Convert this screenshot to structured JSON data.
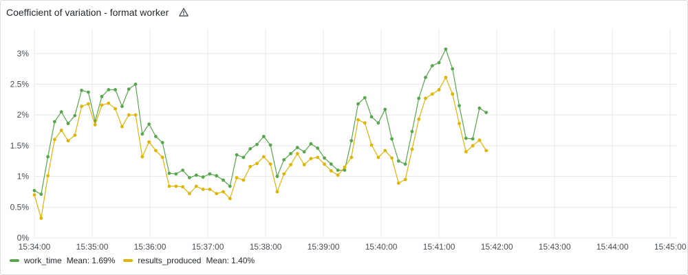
{
  "panel": {
    "title": "Coefficient of variation - format worker",
    "icon": "warning-triangle-icon"
  },
  "colors": {
    "work_time": "#56a64b",
    "results_produced": "#e0b400",
    "grid": "#e8e8ea"
  },
  "chart_data": {
    "type": "line",
    "title": "Coefficient of variation - format worker",
    "xlabel": "",
    "ylabel": "",
    "x_ticks": [
      "15:34:00",
      "15:35:00",
      "15:36:00",
      "15:37:00",
      "15:38:00",
      "15:39:00",
      "15:40:00",
      "15:41:00",
      "15:42:00",
      "15:43:00",
      "15:44:00",
      "15:45:00"
    ],
    "y_ticks": [
      "0%",
      "0.5%",
      "1%",
      "1.5%",
      "2%",
      "2.5%",
      "3%"
    ],
    "xlim": [
      "15:34:00",
      "15:45:07"
    ],
    "ylim": [
      0,
      3.4
    ],
    "y_unit": "%",
    "grid": true,
    "legend_position": "bottom-left",
    "x_step_seconds": 7,
    "series": [
      {
        "name": "work_time",
        "mean": "Mean: 1.69%",
        "values": [
          0.77,
          0.71,
          1.32,
          1.89,
          2.05,
          1.86,
          1.99,
          2.4,
          2.37,
          1.9,
          2.3,
          2.41,
          2.41,
          2.14,
          2.42,
          2.5,
          1.69,
          1.85,
          1.65,
          1.55,
          1.05,
          1.04,
          1.1,
          0.98,
          1.02,
          0.99,
          1.04,
          1.01,
          0.94,
          0.84,
          1.35,
          1.31,
          1.45,
          1.52,
          1.65,
          1.51,
          1.0,
          1.27,
          1.37,
          1.47,
          1.4,
          1.53,
          1.46,
          1.3,
          1.2,
          1.1,
          1.1,
          1.58,
          2.18,
          2.28,
          1.97,
          1.87,
          2.09,
          1.61,
          1.25,
          1.2,
          1.73,
          2.27,
          2.61,
          2.8,
          2.85,
          3.07,
          2.75,
          2.15,
          1.62,
          1.61,
          2.11,
          2.04
        ]
      },
      {
        "name": "results_produced",
        "mean": "Mean: 1.40%",
        "values": [
          0.7,
          0.32,
          1.01,
          1.6,
          1.75,
          1.58,
          1.67,
          2.14,
          2.18,
          1.84,
          2.16,
          2.19,
          2.1,
          1.81,
          2.0,
          2.0,
          1.32,
          1.56,
          1.42,
          1.31,
          0.84,
          0.84,
          0.83,
          0.72,
          0.84,
          0.79,
          0.79,
          0.72,
          0.75,
          0.64,
          0.98,
          0.94,
          1.16,
          1.21,
          1.32,
          1.2,
          0.75,
          1.04,
          1.19,
          1.37,
          1.19,
          1.29,
          1.31,
          1.2,
          1.09,
          1.02,
          1.15,
          1.31,
          1.92,
          1.87,
          1.51,
          1.31,
          1.42,
          1.3,
          0.89,
          0.95,
          1.44,
          1.93,
          2.27,
          2.34,
          2.41,
          2.61,
          2.34,
          1.86,
          1.4,
          1.5,
          1.59,
          1.42
        ]
      }
    ]
  }
}
